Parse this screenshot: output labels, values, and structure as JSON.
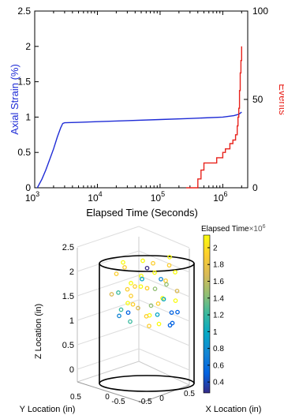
{
  "chart_data": [
    {
      "type": "line",
      "title": "",
      "xlabel": "Elapsed Time (Seconds)",
      "ylabel": "Axial Strain (%)",
      "ylabel_right": "Events",
      "x_scale": "log",
      "xlim": [
        1000,
        2500000
      ],
      "ylim": [
        0,
        2.5
      ],
      "ylim_right": [
        0,
        100
      ],
      "x_ticks": [
        1000,
        10000,
        100000,
        1000000
      ],
      "x_tick_labels": [
        {
          "base": "10",
          "exp": "3"
        },
        {
          "base": "10",
          "exp": "4"
        },
        {
          "base": "10",
          "exp": "5"
        },
        {
          "base": "10",
          "exp": "6"
        }
      ],
      "y_ticks": [
        "0",
        "0.5",
        "1",
        "1.5",
        "2",
        "2.5"
      ],
      "y_ticks_right": [
        "0",
        "50",
        "100"
      ],
      "y_ticks_right_values": [
        0,
        50,
        100
      ],
      "grid": false,
      "colors": {
        "strain": "#1f2cd6",
        "events": "#e8231c",
        "right_axis_label": "#e8231c",
        "left_axis_label": "#1f2cd6"
      },
      "series": [
        {
          "axis": "left",
          "x": [
            1100,
            1300,
            1500,
            1700,
            2000,
            2300,
            2600,
            2800,
            3000,
            5000,
            10000,
            30000,
            100000,
            300000,
            1000000,
            1500000,
            1800000,
            2000000
          ],
          "y": [
            0.0,
            0.12,
            0.25,
            0.38,
            0.55,
            0.72,
            0.85,
            0.91,
            0.92,
            0.925,
            0.935,
            0.95,
            0.965,
            0.98,
            1.0,
            1.02,
            1.04,
            1.07
          ]
        },
        {
          "axis": "right",
          "step": true,
          "x": [
            260000,
            400000,
            450000,
            500000,
            800000,
            1000000,
            1100000,
            1300000,
            1450000,
            1600000,
            1700000,
            1750000,
            1800000,
            1850000,
            1900000,
            1950000,
            2000000
          ],
          "y": [
            0,
            5,
            10,
            14,
            17,
            20,
            22,
            25,
            27,
            30,
            35,
            40,
            45,
            55,
            65,
            72,
            80
          ]
        }
      ]
    },
    {
      "type": "scatter",
      "title": "",
      "xlabel": "X Location (in)",
      "ylabel": "Y Location (in)",
      "zlabel": "Z Location (in)",
      "z_ticks": [
        "0",
        "0.5",
        "1",
        "1.5",
        "2",
        "2.5"
      ],
      "z_lim": [
        0,
        2.5
      ],
      "x_ticks": [
        "-0.5",
        "0",
        "0.5"
      ],
      "y_ticks": [
        "0.5",
        "0",
        "-0.5"
      ],
      "colorbar_label": "Elapsed Time",
      "colorbar_multiplier": "×10",
      "colorbar_exp": "6",
      "colorbar_ticks": [
        "2",
        "1.8",
        "1.6",
        "1.4",
        "1.2",
        "1",
        "0.8",
        "0.6",
        "0.4"
      ],
      "colorbar_tick_values": [
        2.0,
        1.8,
        1.6,
        1.4,
        1.2,
        1.0,
        0.8,
        0.6,
        0.4
      ],
      "colorbar_range": [
        0.27,
        2.15
      ],
      "colormap": [
        "#352a87",
        "#0363e1",
        "#1485d4",
        "#06a7c6",
        "#38b99e",
        "#92bf73",
        "#d9ba56",
        "#fcce2e",
        "#f9fb0e"
      ],
      "grid": true,
      "points": [
        {
          "x": -0.3,
          "y": 0.1,
          "z": 2.2,
          "t": 2.05
        },
        {
          "x": -0.1,
          "y": 0.2,
          "z": 2.25,
          "t": 2.1
        },
        {
          "x": 0.1,
          "y": -0.1,
          "z": 2.15,
          "t": 2.0
        },
        {
          "x": 0.25,
          "y": 0.05,
          "z": 2.3,
          "t": 2.1
        },
        {
          "x": -0.2,
          "y": -0.2,
          "z": 2.05,
          "t": 1.9
        },
        {
          "x": 0.05,
          "y": 0.15,
          "z": 2.0,
          "t": 2.05
        },
        {
          "x": -0.35,
          "y": 0.0,
          "z": 1.95,
          "t": 2.0
        },
        {
          "x": 0.3,
          "y": -0.15,
          "z": 2.1,
          "t": 1.8
        },
        {
          "x": -0.05,
          "y": -0.05,
          "z": 1.9,
          "t": 2.1
        },
        {
          "x": 0.15,
          "y": 0.25,
          "z": 1.85,
          "t": 1.95
        },
        {
          "x": -0.25,
          "y": 0.25,
          "z": 1.8,
          "t": 2.05
        },
        {
          "x": 0.2,
          "y": 0.1,
          "z": 1.75,
          "t": 1.5
        },
        {
          "x": -0.15,
          "y": 0.05,
          "z": 1.7,
          "t": 2.0
        },
        {
          "x": 0.0,
          "y": -0.25,
          "z": 1.65,
          "t": 2.1
        },
        {
          "x": 0.35,
          "y": 0.0,
          "z": 1.6,
          "t": 1.7
        },
        {
          "x": -0.3,
          "y": -0.1,
          "z": 1.55,
          "t": 1.2
        },
        {
          "x": 0.1,
          "y": 0.3,
          "z": 1.5,
          "t": 2.05
        },
        {
          "x": -0.1,
          "y": -0.3,
          "z": 1.45,
          "t": 1.9
        },
        {
          "x": 0.25,
          "y": -0.2,
          "z": 1.4,
          "t": 0.9
        },
        {
          "x": -0.2,
          "y": 0.15,
          "z": 1.35,
          "t": 2.0
        },
        {
          "x": 0.05,
          "y": 0.0,
          "z": 1.3,
          "t": 1.4
        },
        {
          "x": -0.35,
          "y": 0.2,
          "z": 1.25,
          "t": 1.1
        },
        {
          "x": 0.3,
          "y": 0.2,
          "z": 1.2,
          "t": 0.6
        },
        {
          "x": -0.05,
          "y": 0.3,
          "z": 1.15,
          "t": 2.1
        },
        {
          "x": 0.15,
          "y": -0.1,
          "z": 1.1,
          "t": 1.0
        },
        {
          "x": -0.25,
          "y": -0.25,
          "z": 1.05,
          "t": 0.7
        },
        {
          "x": 0.2,
          "y": 0.35,
          "z": 1.0,
          "t": 0.5
        },
        {
          "x": -0.15,
          "y": -0.15,
          "z": 0.95,
          "t": 1.3
        },
        {
          "x": 0.0,
          "y": 0.1,
          "z": 0.9,
          "t": 2.0
        },
        {
          "x": 0.35,
          "y": -0.3,
          "z": 0.85,
          "t": 0.4
        },
        {
          "x": -0.3,
          "y": 0.3,
          "z": 1.4,
          "t": 2.05
        },
        {
          "x": 0.1,
          "y": -0.35,
          "z": 1.6,
          "t": 1.9
        },
        {
          "x": -0.1,
          "y": 0.0,
          "z": 1.25,
          "t": 1.6
        },
        {
          "x": 0.25,
          "y": 0.3,
          "z": 1.45,
          "t": 2.1
        },
        {
          "x": -0.2,
          "y": -0.05,
          "z": 1.15,
          "t": 0.45
        },
        {
          "x": 0.05,
          "y": -0.2,
          "z": 1.05,
          "t": 1.8
        },
        {
          "x": 0.3,
          "y": 0.1,
          "z": 2.0,
          "t": 2.05
        },
        {
          "x": -0.05,
          "y": 0.2,
          "z": 2.1,
          "t": 0.35
        },
        {
          "x": 0.15,
          "y": 0.05,
          "z": 1.85,
          "t": 0.8
        },
        {
          "x": -0.25,
          "y": 0.1,
          "z": 1.65,
          "t": 2.0
        },
        {
          "x": 0.0,
          "y": 0.35,
          "z": 1.7,
          "t": 1.5
        },
        {
          "x": 0.2,
          "y": -0.25,
          "z": 1.3,
          "t": 2.0
        },
        {
          "x": -0.35,
          "y": -0.2,
          "z": 1.5,
          "t": 1.75
        },
        {
          "x": 0.1,
          "y": 0.15,
          "z": 0.95,
          "t": 2.1
        },
        {
          "x": -0.15,
          "y": 0.35,
          "z": 1.9,
          "t": 1.0
        },
        {
          "x": 0.3,
          "y": -0.05,
          "z": 1.15,
          "t": 0.55
        }
      ]
    }
  ]
}
